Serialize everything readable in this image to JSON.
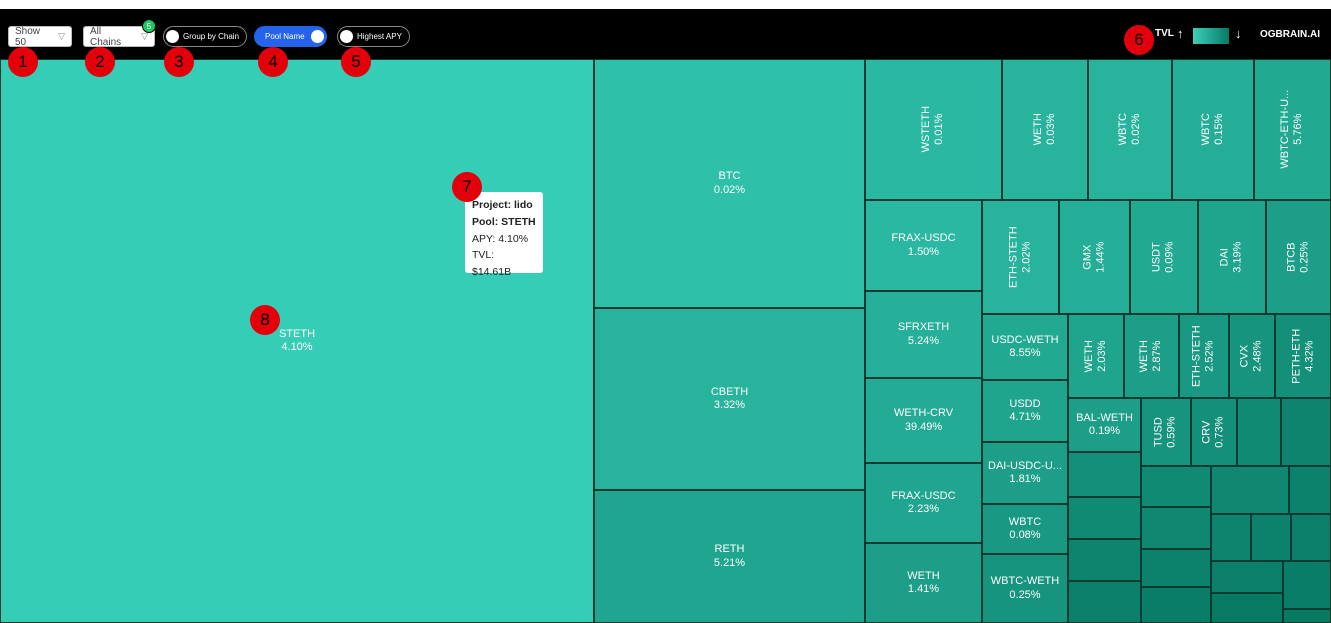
{
  "toolbar": {
    "show_label": "Show 50",
    "chains_label": "All Chains",
    "chains_badge": "5",
    "group_by_chain": "Group by Chain",
    "pool_name": "Pool Name",
    "highest_apy": "Highest APY",
    "tvl_label": "TVL",
    "brand": "OGBRAIN.AI"
  },
  "markers": [
    "1",
    "2",
    "3",
    "4",
    "5",
    "6",
    "7",
    "8"
  ],
  "tooltip": {
    "project": "Project: lido",
    "pool": "Pool: STETH",
    "apy": "APY: 4.10%",
    "tvl": "TVL: $14.61B"
  },
  "colors": {
    "top_bar": "#000000",
    "toggle_on": "#2463ea",
    "marker": "#e3000b",
    "largest_tile": "#36cdb6",
    "smallest_tile": "#087a64"
  },
  "tiles": [
    {
      "name": "STETH",
      "apy": "4.10%"
    },
    {
      "name": "BTC",
      "apy": "0.02%"
    },
    {
      "name": "CBETH",
      "apy": "3.32%"
    },
    {
      "name": "RETH",
      "apy": "5.21%"
    },
    {
      "name": "WSTETH",
      "apy": "0.01%"
    },
    {
      "name": "WETH",
      "apy": "0.03%"
    },
    {
      "name": "WBTC",
      "apy": "0.02%"
    },
    {
      "name": "WBTC",
      "apy": "0.15%"
    },
    {
      "name": "WBTC-ETH-U...",
      "apy": "5.76%"
    },
    {
      "name": "FRAX-USDC",
      "apy": "1.50%"
    },
    {
      "name": "ETH-STETH",
      "apy": "2.02%"
    },
    {
      "name": "GMX",
      "apy": "1.44%"
    },
    {
      "name": "USDT",
      "apy": "0.09%"
    },
    {
      "name": "DAI",
      "apy": "3.19%"
    },
    {
      "name": "BTCB",
      "apy": "0.25%"
    },
    {
      "name": "SFRXETH",
      "apy": "5.24%"
    },
    {
      "name": "USDC-WETH",
      "apy": "8.55%"
    },
    {
      "name": "WETH",
      "apy": "2.03%"
    },
    {
      "name": "WETH",
      "apy": "2.87%"
    },
    {
      "name": "ETH-STETH",
      "apy": "2.52%"
    },
    {
      "name": "CVX",
      "apy": "2.48%"
    },
    {
      "name": "PETH-ETH",
      "apy": "4.32%"
    },
    {
      "name": "WETH-CRV",
      "apy": "39.49%"
    },
    {
      "name": "USDD",
      "apy": "4.71%"
    },
    {
      "name": "BAL-WETH",
      "apy": "0.19%"
    },
    {
      "name": "TUSD",
      "apy": "0.59%"
    },
    {
      "name": "CRV",
      "apy": "0.73%"
    },
    {
      "name": "DAI-USDC-U...",
      "apy": "1.81%"
    },
    {
      "name": "FRAX-USDC",
      "apy": "2.23%"
    },
    {
      "name": "WBTC",
      "apy": "0.08%"
    },
    {
      "name": "WETH",
      "apy": "1.41%"
    },
    {
      "name": "WBTC-WETH",
      "apy": "0.25%"
    }
  ]
}
